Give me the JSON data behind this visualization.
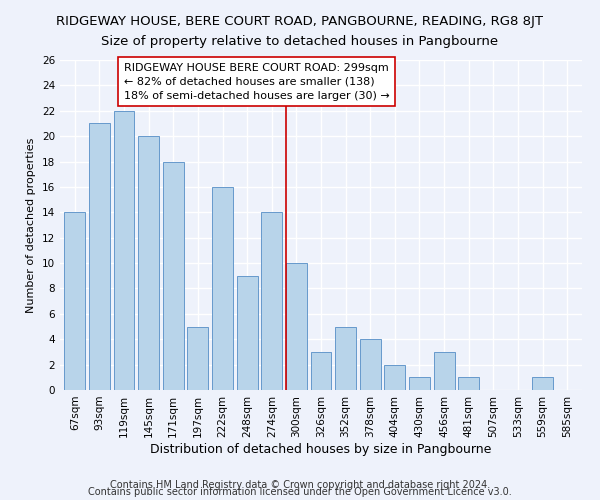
{
  "title": "RIDGEWAY HOUSE, BERE COURT ROAD, PANGBOURNE, READING, RG8 8JT",
  "subtitle": "Size of property relative to detached houses in Pangbourne",
  "xlabel": "Distribution of detached houses by size in Pangbourne",
  "ylabel": "Number of detached properties",
  "bar_labels": [
    "67sqm",
    "93sqm",
    "119sqm",
    "145sqm",
    "171sqm",
    "197sqm",
    "222sqm",
    "248sqm",
    "274sqm",
    "300sqm",
    "326sqm",
    "352sqm",
    "378sqm",
    "404sqm",
    "430sqm",
    "456sqm",
    "481sqm",
    "507sqm",
    "533sqm",
    "559sqm",
    "585sqm"
  ],
  "bar_values": [
    14,
    21,
    22,
    20,
    18,
    5,
    16,
    9,
    14,
    10,
    3,
    5,
    4,
    2,
    1,
    3,
    1,
    0,
    0,
    1,
    0
  ],
  "bar_color": "#b8d4ea",
  "bar_edge_color": "#6699cc",
  "highlight_index": 9,
  "highlight_line_color": "#cc0000",
  "annotation_text": "RIDGEWAY HOUSE BERE COURT ROAD: 299sqm\n← 82% of detached houses are smaller (138)\n18% of semi-detached houses are larger (30) →",
  "annotation_box_color": "#ffffff",
  "annotation_box_edge": "#cc0000",
  "ylim": [
    0,
    26
  ],
  "yticks": [
    0,
    2,
    4,
    6,
    8,
    10,
    12,
    14,
    16,
    18,
    20,
    22,
    24,
    26
  ],
  "footer1": "Contains HM Land Registry data © Crown copyright and database right 2024.",
  "footer2": "Contains public sector information licensed under the Open Government Licence v3.0.",
  "title_fontsize": 9.5,
  "subtitle_fontsize": 9.5,
  "xlabel_fontsize": 9,
  "ylabel_fontsize": 8,
  "tick_fontsize": 7.5,
  "footer_fontsize": 7,
  "annotation_fontsize": 8,
  "background_color": "#eef2fb"
}
